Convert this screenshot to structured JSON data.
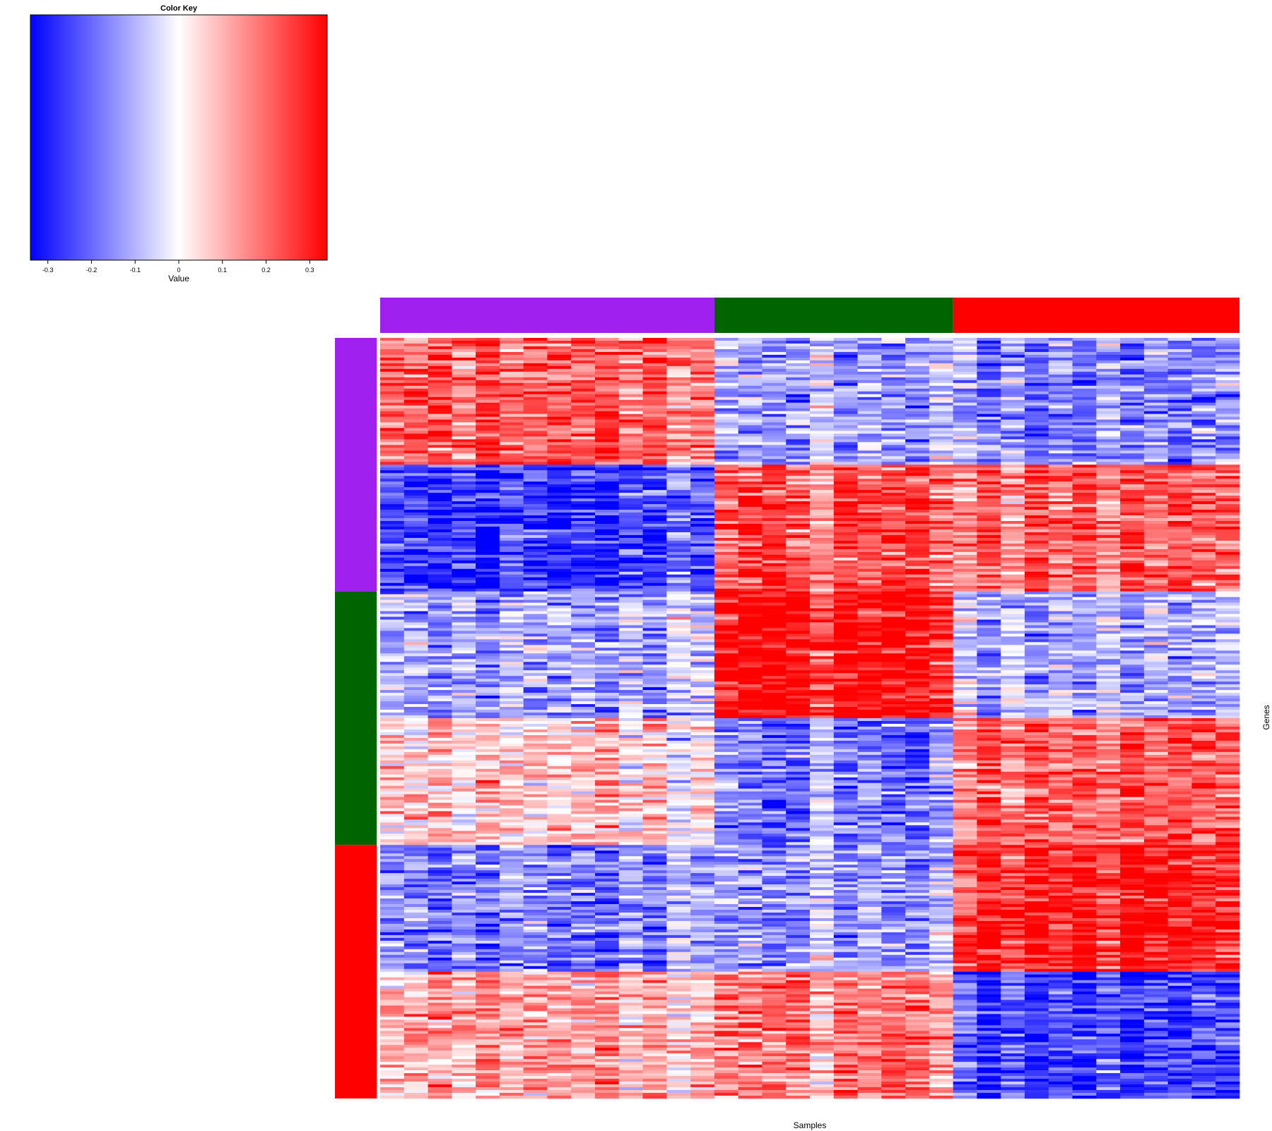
{
  "chart_data": {
    "type": "heatmap",
    "color_key": {
      "title": "Color Key",
      "xlabel": "Value",
      "range": [
        -0.34,
        0.34
      ],
      "ticks": [
        -0.3,
        -0.2,
        -0.1,
        0,
        0.1,
        0.2,
        0.3
      ],
      "tick_labels": [
        "-0.3",
        "-0.2",
        "-0.1",
        "0",
        "0.1",
        "0.2",
        "0.3"
      ],
      "colors": {
        "low": "#0000ff",
        "mid": "#ffffff",
        "high": "#ff0000"
      }
    },
    "xlabel": "Samples",
    "ylabel": "Genes",
    "column_groups": [
      {
        "color": "#a020f0",
        "n_samples": 14
      },
      {
        "color": "#006400",
        "n_samples": 10
      },
      {
        "color": "#ff0000",
        "n_samples": 12
      }
    ],
    "row_groups": [
      {
        "color": "#a020f0",
        "n_blocks": 2
      },
      {
        "color": "#006400",
        "n_blocks": 2
      },
      {
        "color": "#ff0000",
        "n_blocks": 2
      }
    ],
    "block_pattern": [
      [
        0.2,
        -0.1,
        -0.15
      ],
      [
        -0.25,
        0.2,
        0.2
      ],
      [
        -0.1,
        0.3,
        -0.1
      ],
      [
        0.05,
        -0.15,
        0.2
      ],
      [
        -0.15,
        -0.1,
        0.3
      ],
      [
        0.1,
        0.15,
        -0.25
      ]
    ]
  }
}
